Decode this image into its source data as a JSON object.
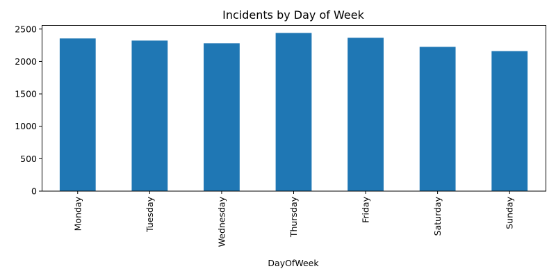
{
  "chart_data": {
    "type": "bar",
    "title": "Incidents by Day of Week",
    "xlabel": "DayOfWeek",
    "ylabel": "",
    "categories": [
      "Monday",
      "Tuesday",
      "Wednesday",
      "Thursday",
      "Friday",
      "Saturday",
      "Sunday"
    ],
    "values": [
      2355,
      2322,
      2280,
      2440,
      2365,
      2225,
      2160
    ],
    "ylim": [
      0,
      2562
    ],
    "yticks": [
      0,
      500,
      1000,
      1500,
      2000,
      2500
    ],
    "bar_color": "#1f77b4",
    "grid": false,
    "legend": "none"
  }
}
